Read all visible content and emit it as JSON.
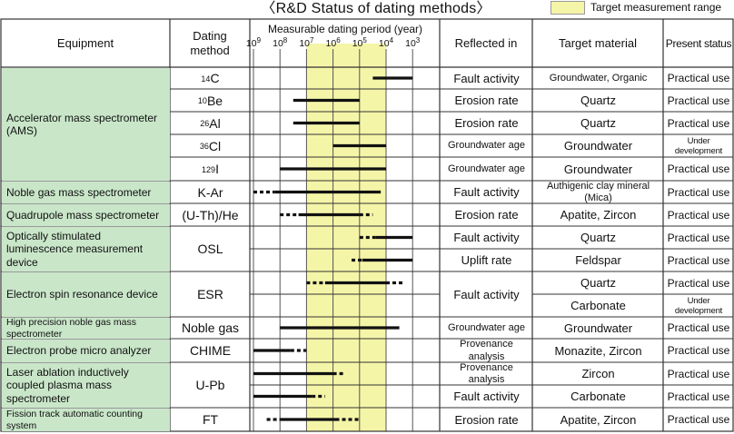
{
  "title": "〈R&D Status of dating methods〉",
  "legend": {
    "label": "Target measurement range",
    "color": "#f5f5a8"
  },
  "colors": {
    "equipment_bg": "#c9e6c9",
    "target_band": "#f5f5a8",
    "bar": "#111111",
    "grid": "#333333"
  },
  "header": {
    "equipment": "Equipment",
    "method": "Dating method",
    "period": "Measurable dating period (year)",
    "reflected": "Reflected in",
    "target": "Target material",
    "status": "Present status"
  },
  "ticks": [
    {
      "b": "10",
      "e": "9"
    },
    {
      "b": "10",
      "e": "8"
    },
    {
      "b": "10",
      "e": "7"
    },
    {
      "b": "10",
      "e": "6"
    },
    {
      "b": "10",
      "e": "5"
    },
    {
      "b": "10",
      "e": "4"
    },
    {
      "b": "10",
      "e": "3"
    }
  ],
  "target_range_log_years": [
    7,
    4
  ],
  "equipment": [
    {
      "label": "Accelerator mass spectrometer (AMS)",
      "rows": [
        0,
        4
      ]
    },
    {
      "label": "Noble gas mass spectrometer",
      "rows": [
        5,
        5
      ]
    },
    {
      "label": "Quadrupole mass spectrometer",
      "rows": [
        6,
        6
      ]
    },
    {
      "label": "Optically stimulated luminescence measurement device",
      "rows": [
        7,
        8
      ]
    },
    {
      "label": "Electron spin resonance device",
      "rows": [
        9,
        10
      ]
    },
    {
      "label": "High precision noble gas mass spectrometer",
      "rows": [
        11,
        11
      ]
    },
    {
      "label": "Electron probe micro analyzer",
      "rows": [
        12,
        12
      ]
    },
    {
      "label": "Laser ablation inductively coupled plasma mass spectrometer",
      "rows": [
        13,
        14
      ]
    },
    {
      "label": "Fission track automatic counting system",
      "rows": [
        15,
        15
      ]
    }
  ],
  "methods": [
    {
      "sup": "14",
      "text": "C",
      "rows": [
        0,
        0
      ]
    },
    {
      "sup": "10",
      "text": "Be",
      "rows": [
        1,
        1
      ]
    },
    {
      "sup": "26",
      "text": "Al",
      "rows": [
        2,
        2
      ]
    },
    {
      "sup": "36",
      "text": "Cl",
      "rows": [
        3,
        3
      ]
    },
    {
      "sup": "129",
      "text": "I",
      "rows": [
        4,
        4
      ]
    },
    {
      "sup": "",
      "text": "K-Ar",
      "rows": [
        5,
        5
      ]
    },
    {
      "sup": "",
      "text": "(U-Th)/He",
      "rows": [
        6,
        6
      ]
    },
    {
      "sup": "",
      "text": "OSL",
      "rows": [
        7,
        8
      ]
    },
    {
      "sup": "",
      "text": "ESR",
      "rows": [
        9,
        10
      ]
    },
    {
      "sup": "",
      "text": "Noble gas",
      "rows": [
        11,
        11
      ]
    },
    {
      "sup": "",
      "text": "CHIME",
      "rows": [
        12,
        12
      ]
    },
    {
      "sup": "",
      "text": "U-Pb",
      "rows": [
        13,
        14
      ]
    },
    {
      "sup": "",
      "text": "FT",
      "rows": [
        15,
        15
      ]
    }
  ],
  "reflected": [
    {
      "text": "Fault activity",
      "rows": [
        0,
        0
      ]
    },
    {
      "text": "Erosion rate",
      "rows": [
        1,
        1
      ]
    },
    {
      "text": "Erosion rate",
      "rows": [
        2,
        2
      ]
    },
    {
      "text": "Groundwater age",
      "rows": [
        3,
        3
      ],
      "small": true
    },
    {
      "text": "Groundwater age",
      "rows": [
        4,
        4
      ],
      "small": true
    },
    {
      "text": "Fault activity",
      "rows": [
        5,
        5
      ]
    },
    {
      "text": "Erosion rate",
      "rows": [
        6,
        6
      ]
    },
    {
      "text": "Fault activity",
      "rows": [
        7,
        7
      ]
    },
    {
      "text": "Uplift rate",
      "rows": [
        8,
        8
      ]
    },
    {
      "text": "Fault activity",
      "rows": [
        9,
        10
      ]
    },
    {
      "text": "Groundwater age",
      "rows": [
        11,
        11
      ],
      "small": true
    },
    {
      "text": "Provenance analysis",
      "rows": [
        12,
        12
      ],
      "small": true
    },
    {
      "text": "Provenance analysis",
      "rows": [
        13,
        13
      ],
      "small": true
    },
    {
      "text": "Fault activity",
      "rows": [
        14,
        14
      ]
    },
    {
      "text": "Erosion rate",
      "rows": [
        15,
        15
      ]
    }
  ],
  "target": [
    {
      "text": "Groundwater, Organic",
      "small": true
    },
    {
      "text": "Quartz"
    },
    {
      "text": "Quartz"
    },
    {
      "text": "Groundwater"
    },
    {
      "text": "Groundwater"
    },
    {
      "text": "Authigenic clay mineral (Mica)",
      "small": true
    },
    {
      "text": "Apatite, Zircon"
    },
    {
      "text": "Quartz"
    },
    {
      "text": "Feldspar"
    },
    {
      "text": "Quartz"
    },
    {
      "text": "Carbonate"
    },
    {
      "text": "Groundwater"
    },
    {
      "text": "Monazite, Zircon"
    },
    {
      "text": "Zircon"
    },
    {
      "text": "Carbonate"
    },
    {
      "text": "Apatite, Zircon"
    }
  ],
  "status": [
    {
      "text": "Practical use"
    },
    {
      "text": "Practical use"
    },
    {
      "text": "Practical use"
    },
    {
      "text": "Under development",
      "small": true
    },
    {
      "text": "Practical use"
    },
    {
      "text": "Practical use"
    },
    {
      "text": "Practical use"
    },
    {
      "text": "Practical use"
    },
    {
      "text": "Practical use"
    },
    {
      "text": "Practical use"
    },
    {
      "text": "Under development",
      "small": true
    },
    {
      "text": "Practical use"
    },
    {
      "text": "Practical use"
    },
    {
      "text": "Practical use"
    },
    {
      "text": "Practical use"
    },
    {
      "text": "Practical use"
    }
  ],
  "bars": [
    {
      "row": 0,
      "segs": [
        {
          "from": 4.5,
          "to": 3.0,
          "style": "solid"
        }
      ]
    },
    {
      "row": 1,
      "segs": [
        {
          "from": 7.5,
          "to": 5.0,
          "style": "solid"
        }
      ]
    },
    {
      "row": 2,
      "segs": [
        {
          "from": 7.5,
          "to": 5.0,
          "style": "solid"
        }
      ]
    },
    {
      "row": 3,
      "segs": [
        {
          "from": 6.0,
          "to": 4.0,
          "style": "solid"
        }
      ]
    },
    {
      "row": 4,
      "segs": [
        {
          "from": 8.0,
          "to": 4.0,
          "style": "solid"
        }
      ]
    },
    {
      "row": 5,
      "segs": [
        {
          "from": 9.0,
          "to": 8.2,
          "style": "dotted"
        },
        {
          "from": 8.2,
          "to": 4.2,
          "style": "solid"
        }
      ]
    },
    {
      "row": 6,
      "segs": [
        {
          "from": 8.0,
          "to": 7.3,
          "style": "dotted"
        },
        {
          "from": 7.3,
          "to": 5.0,
          "style": "solid"
        },
        {
          "from": 5.0,
          "to": 4.5,
          "style": "dotted"
        }
      ]
    },
    {
      "row": 7,
      "segs": [
        {
          "from": 5.0,
          "to": 4.4,
          "style": "dotted"
        },
        {
          "from": 4.4,
          "to": 3.0,
          "style": "solid"
        }
      ]
    },
    {
      "row": 8,
      "segs": [
        {
          "from": 5.3,
          "to": 4.9,
          "style": "dotted"
        },
        {
          "from": 4.9,
          "to": 3.0,
          "style": "solid"
        }
      ]
    },
    {
      "row": 9,
      "segs": [
        {
          "from": 7.0,
          "to": 6.3,
          "style": "dotted"
        },
        {
          "from": 6.3,
          "to": 4.0,
          "style": "solid"
        },
        {
          "from": 4.0,
          "to": 3.3,
          "style": "dotted"
        }
      ]
    },
    {
      "row": 11,
      "segs": [
        {
          "from": 8.0,
          "to": 3.5,
          "style": "solid"
        }
      ]
    },
    {
      "row": 12,
      "segs": [
        {
          "from": 9.0,
          "to": 7.6,
          "style": "solid"
        },
        {
          "from": 7.6,
          "to": 7.0,
          "style": "dotted"
        }
      ]
    },
    {
      "row": 13,
      "segs": [
        {
          "from": 9.0,
          "to": 6.0,
          "style": "solid"
        },
        {
          "from": 6.0,
          "to": 5.6,
          "style": "dotted"
        }
      ]
    },
    {
      "row": 14,
      "segs": [
        {
          "from": 9.0,
          "to": 6.8,
          "style": "solid"
        },
        {
          "from": 6.8,
          "to": 6.3,
          "style": "dotted"
        }
      ]
    },
    {
      "row": 15,
      "segs": [
        {
          "from": 8.5,
          "to": 8.0,
          "style": "dotted"
        },
        {
          "from": 8.0,
          "to": 5.9,
          "style": "solid"
        },
        {
          "from": 5.9,
          "to": 5.0,
          "style": "dotted"
        }
      ]
    }
  ]
}
